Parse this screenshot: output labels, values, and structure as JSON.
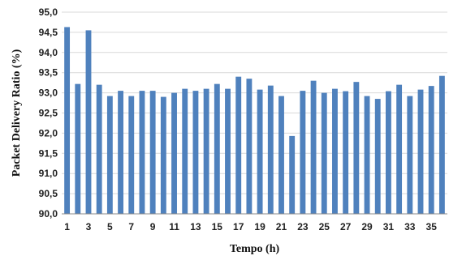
{
  "chart_data": {
    "type": "bar",
    "x": [
      1,
      2,
      3,
      4,
      5,
      6,
      7,
      8,
      9,
      10,
      11,
      12,
      13,
      14,
      15,
      16,
      17,
      18,
      19,
      20,
      21,
      22,
      23,
      24,
      25,
      26,
      27,
      28,
      29,
      30,
      31,
      32,
      33,
      34,
      35,
      36
    ],
    "values": [
      94.63,
      93.22,
      94.55,
      93.2,
      92.92,
      93.05,
      92.92,
      93.05,
      93.05,
      92.9,
      93.0,
      93.1,
      93.05,
      93.1,
      93.22,
      93.1,
      93.4,
      93.35,
      93.08,
      93.18,
      92.92,
      91.93,
      93.05,
      93.3,
      93.0,
      93.1,
      93.04,
      93.27,
      92.92,
      92.85,
      93.04,
      93.2,
      92.92,
      93.08,
      93.17,
      93.42
    ],
    "xtick_labels": [
      "1",
      "3",
      "5",
      "7",
      "9",
      "11",
      "13",
      "15",
      "17",
      "19",
      "21",
      "23",
      "25",
      "27",
      "29",
      "31",
      "33",
      "35"
    ],
    "ytick_labels": [
      "90,0",
      "90,5",
      "91,0",
      "91,5",
      "92,0",
      "92,5",
      "93,0",
      "93,5",
      "94,0",
      "94,5",
      "95,0"
    ],
    "xlabel": "Tempo  (h)",
    "ylabel": "Packet Delivery Ratio (%)",
    "ylim": [
      90.0,
      95.0
    ],
    "grid": true,
    "bar_color": "#4f81bd"
  }
}
